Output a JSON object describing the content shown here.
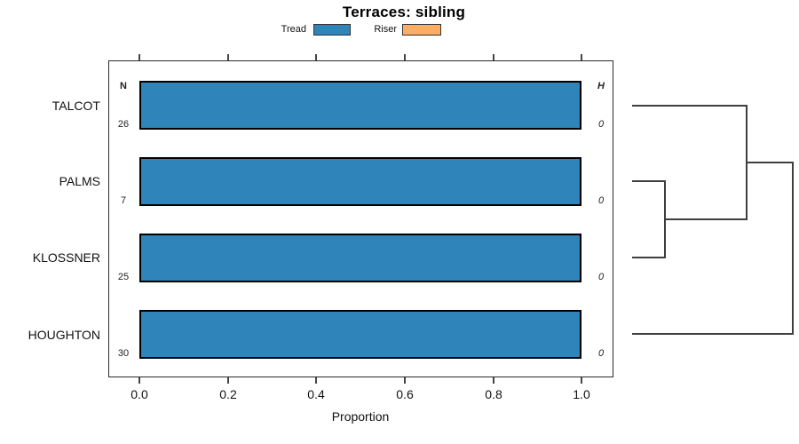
{
  "title": "Terraces: sibling",
  "legend": {
    "position": "top",
    "items": [
      {
        "label": "Tread",
        "color": "#2f85ba"
      },
      {
        "label": "Riser",
        "color": "#fbad66"
      }
    ]
  },
  "chart_data": {
    "type": "bar",
    "orientation": "horizontal",
    "title": "Terraces: sibling",
    "xlabel": "Proportion",
    "xlim": [
      0,
      1
    ],
    "xticks": [
      "0.0",
      "0.2",
      "0.4",
      "0.6",
      "0.8",
      "1.0"
    ],
    "grid": false,
    "categories": [
      "TALCOT",
      "PALMS",
      "KLOSSNER",
      "HOUGHTON"
    ],
    "series": [
      {
        "name": "Tread",
        "color": "#2f85ba",
        "values": [
          1.0,
          1.0,
          1.0,
          1.0
        ]
      },
      {
        "name": "Riser",
        "color": "#fbad66",
        "values": [
          0.0,
          0.0,
          0.0,
          0.0
        ]
      }
    ],
    "n_header": "N",
    "n_values": [
      26,
      7,
      25,
      30
    ],
    "h_header": "H",
    "h_values": [
      0,
      0,
      0,
      0
    ],
    "dendrogram": {
      "position": "right",
      "leaf_order": [
        "TALCOT",
        "PALMS",
        "KLOSSNER",
        "HOUGHTON"
      ],
      "merges": [
        {
          "members": [
            "PALMS",
            "KLOSSNER"
          ]
        },
        {
          "members": [
            "TALCOT",
            "(PALMS,KLOSSNER)"
          ]
        },
        {
          "members": [
            "(TALCOT,PALMS,KLOSSNER)",
            "HOUGHTON"
          ]
        }
      ]
    }
  }
}
